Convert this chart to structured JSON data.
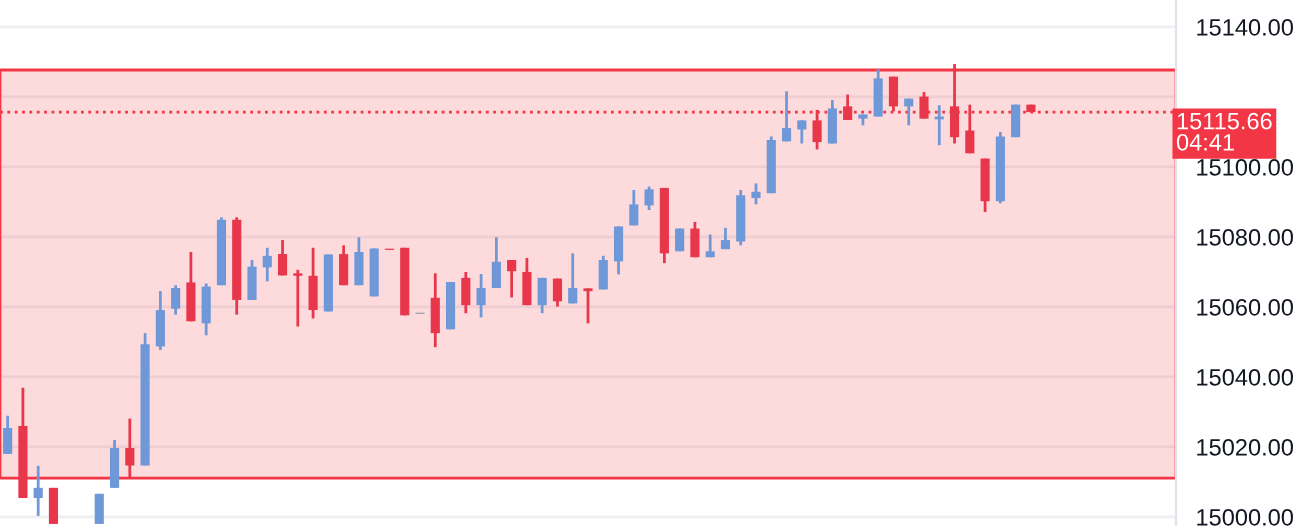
{
  "chart_data": {
    "type": "candlestick",
    "categories": [
      null,
      null,
      null,
      null,
      null,
      null,
      null,
      null,
      null,
      null,
      null,
      null,
      null,
      null,
      null,
      null,
      null,
      null,
      null,
      null,
      null,
      null,
      null,
      null,
      null,
      null,
      null,
      null,
      null,
      null,
      null,
      null,
      null,
      null,
      null,
      null,
      null,
      null,
      null,
      null,
      null,
      null,
      null,
      null,
      null,
      null,
      null,
      null,
      null,
      null,
      null,
      null,
      null,
      null,
      null,
      null,
      null,
      null,
      null,
      null,
      null,
      null,
      null,
      null,
      null,
      null,
      null,
      null,
      null,
      null,
      null,
      null,
      null,
      null,
      null,
      null,
      null
    ],
    "ohlc": [
      [
        15018.0,
        15028.9,
        15018.0,
        15025.4
      ],
      [
        15026.0,
        15036.9,
        15005.4,
        15005.4
      ],
      [
        15005.4,
        15014.6,
        15000.3,
        15008.3
      ],
      [
        15008.3,
        15008.3,
        14998.0,
        14998.0
      ],
      null,
      null,
      [
        14998.0,
        15006.6,
        14998.0,
        15006.6
      ],
      [
        15008.3,
        15022.0,
        15008.3,
        15019.7
      ],
      [
        15019.7,
        15028.1,
        15011.0,
        15014.7
      ],
      [
        15014.7,
        15052.5,
        15014.7,
        15049.3
      ],
      [
        15048.7,
        15064.5,
        15047.7,
        15059.1
      ],
      [
        15059.5,
        15066.2,
        15057.8,
        15065.4
      ],
      [
        15067.0,
        15075.7,
        15055.9,
        15055.9
      ],
      [
        15055.3,
        15066.7,
        15051.9,
        15065.8
      ],
      [
        15066.2,
        15085.6,
        15066.2,
        15084.9
      ],
      [
        15084.9,
        15085.6,
        15057.8,
        15062.0
      ],
      [
        15062.0,
        15073.4,
        15062.0,
        15071.5
      ],
      [
        15071.3,
        15076.9,
        15067.3,
        15074.6
      ],
      [
        15075.1,
        15079.1,
        15069.0,
        15069.0
      ],
      [
        15069.6,
        15070.6,
        15054.4,
        15068.9
      ],
      [
        15068.9,
        15076.9,
        15056.7,
        15059.1
      ],
      [
        15058.7,
        15075.0,
        15058.7,
        15075.0
      ],
      [
        15075.1,
        15077.6,
        15066.2,
        15066.2
      ],
      [
        15066.2,
        15079.9,
        15066.2,
        15075.7
      ],
      [
        15063.0,
        15076.7,
        15063.0,
        15076.7
      ],
      [
        15076.5,
        15076.5,
        15076.3,
        15076.3
      ],
      [
        15076.9,
        15076.9,
        15057.6,
        15057.6
      ],
      [
        15058.0,
        15058.0,
        15058.0,
        15058.0
      ],
      [
        15062.6,
        15069.6,
        15048.5,
        15052.5
      ],
      [
        15053.6,
        15067.1,
        15053.6,
        15067.1
      ],
      [
        15068.3,
        15070.0,
        15058.2,
        15060.5
      ],
      [
        15060.5,
        15069.4,
        15057.0,
        15065.4
      ],
      [
        15065.4,
        15079.9,
        15065.4,
        15072.9
      ],
      [
        15073.4,
        15073.4,
        15062.7,
        15070.2
      ],
      [
        15070.0,
        15074.0,
        15060.5,
        15060.5
      ],
      [
        15060.5,
        15068.3,
        15058.2,
        15068.3
      ],
      [
        15068.1,
        15068.1,
        15060.1,
        15061.6
      ],
      [
        15061.0,
        15075.3,
        15061.0,
        15065.4
      ],
      [
        15065.3,
        15065.3,
        15055.3,
        15064.5
      ],
      [
        15065.0,
        15074.6,
        15065.0,
        15073.4
      ],
      [
        15073.0,
        15083.0,
        15069.3,
        15083.0
      ],
      [
        15083.3,
        15093.4,
        15083.3,
        15089.3
      ],
      [
        15089.0,
        15094.4,
        15087.7,
        15093.6
      ],
      [
        15094.0,
        15094.0,
        15072.5,
        15075.3
      ],
      [
        15075.9,
        15082.4,
        15075.9,
        15082.4
      ],
      [
        15082.4,
        15084.3,
        15074.2,
        15074.2
      ],
      [
        15074.2,
        15080.7,
        15074.2,
        15075.9
      ],
      [
        15076.5,
        15082.6,
        15076.5,
        15079.1
      ],
      [
        15078.7,
        15093.4,
        15077.6,
        15091.9
      ],
      [
        15091.1,
        15095.3,
        15089.3,
        15092.9
      ],
      [
        15092.5,
        15108.7,
        15092.5,
        15107.7
      ],
      [
        15107.3,
        15121.6,
        15107.3,
        15111.1
      ],
      [
        15110.7,
        15113.3,
        15106.7,
        15113.3
      ],
      [
        15113.3,
        15116.3,
        15105.0,
        15107.1
      ],
      [
        15106.7,
        15119.1,
        15106.7,
        15116.7
      ],
      [
        15117.3,
        15120.7,
        15113.4,
        15113.4
      ],
      [
        15113.8,
        15115.0,
        15111.9,
        15115.0
      ],
      [
        15114.4,
        15127.9,
        15114.4,
        15125.3
      ],
      [
        15125.8,
        15125.8,
        15115.9,
        15117.3
      ],
      [
        15117.3,
        15119.5,
        15111.9,
        15119.5
      ],
      [
        15120.1,
        15121.4,
        15113.8,
        15113.8
      ],
      [
        15113.6,
        15117.6,
        15106.2,
        15114.4
      ],
      [
        15117.3,
        15129.4,
        15106.7,
        15108.5
      ],
      [
        15110.4,
        15117.8,
        15103.9,
        15103.9
      ],
      [
        15102.4,
        15102.4,
        15087.1,
        15090.2
      ],
      [
        15090.2,
        15110.0,
        15089.6,
        15108.7
      ],
      [
        15108.5,
        15117.8,
        15108.5,
        15117.8
      ],
      [
        15117.8,
        15117.8,
        15115.66,
        15115.66
      ],
      null,
      null,
      null,
      null,
      null,
      null,
      null,
      null,
      null
    ],
    "colors": [
      "#6f98d8",
      "#e8364b",
      "#6f98d8",
      "#e8364b",
      null,
      null,
      "#6f98d8",
      "#6f98d8",
      "#e8364b",
      "#6f98d8",
      "#6f98d8",
      "#6f98d8",
      "#e8364b",
      "#6f98d8",
      "#6f98d8",
      "#e8364b",
      "#6f98d8",
      "#6f98d8",
      "#e8364b",
      "#e8364b",
      "#e8364b",
      "#6f98d8",
      "#e8364b",
      "#6f98d8",
      "#6f98d8",
      "#e8364b",
      "#e8364b",
      "#9a9aa6",
      "#e8364b",
      "#6f98d8",
      "#e8364b",
      "#6f98d8",
      "#6f98d8",
      "#e8364b",
      "#e8364b",
      "#6f98d8",
      "#e8364b",
      "#6f98d8",
      "#e8364b",
      "#6f98d8",
      "#6f98d8",
      "#6f98d8",
      "#6f98d8",
      "#e8364b",
      "#6f98d8",
      "#e8364b",
      "#6f98d8",
      "#6f98d8",
      "#6f98d8",
      "#6f98d8",
      "#6f98d8",
      "#6f98d8",
      "#6f98d8",
      "#e8364b",
      "#6f98d8",
      "#e8364b",
      "#6f98d8",
      "#6f98d8",
      "#e8364b",
      "#6f98d8",
      "#e8364b",
      "#6f98d8",
      "#e8364b",
      "#e8364b",
      "#e8364b",
      "#6f98d8",
      "#6f98d8",
      "#e8364b",
      null,
      null,
      null,
      null,
      null,
      null,
      null,
      null,
      null
    ],
    "ylim": [
      14997.4,
      15147.7
    ],
    "yticks": [
      {
        "value": 15000,
        "label": "15000.00"
      },
      {
        "value": 15020,
        "label": "15020.00"
      },
      {
        "value": 15040,
        "label": "15040.00"
      },
      {
        "value": 15060,
        "label": "15060.00"
      },
      {
        "value": 15080,
        "label": "15080.00"
      },
      {
        "value": 15100,
        "label": "15100.00"
      },
      {
        "value": 15120,
        "label": null
      },
      {
        "value": 15140,
        "label": "15140.00"
      }
    ],
    "grid": "y",
    "bands": [
      {
        "axis": "y",
        "from": 15011.1,
        "to": 15127.7,
        "color": "#f23645"
      }
    ],
    "ref_lines": [
      {
        "axis": "y",
        "value": 15115.66,
        "label": "15115.66",
        "color": "#f23645",
        "line_style": "dotted"
      }
    ],
    "annotations": [
      "04:41"
    ]
  }
}
